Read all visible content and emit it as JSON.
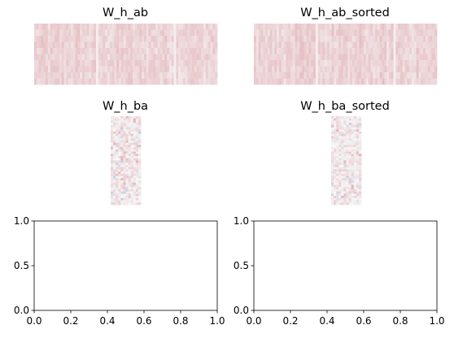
{
  "chart_data": [
    {
      "type": "heatmap",
      "title": "W_h_ab",
      "rows": 10,
      "cols": 80,
      "colormap": "RdBu_r",
      "value_range": [
        -1,
        1
      ],
      "base_value": 0.16,
      "axis": "off"
    },
    {
      "type": "heatmap",
      "title": "W_h_ab_sorted",
      "rows": 10,
      "cols": 80,
      "colormap": "RdBu_r",
      "value_range": [
        -1,
        1
      ],
      "base_value": 0.16,
      "axis": "off"
    },
    {
      "type": "heatmap",
      "title": "W_h_ba",
      "rows": 40,
      "cols": 12,
      "colormap": "RdBu_r",
      "value_range": [
        -1,
        1
      ],
      "base_value": 0.05,
      "axis": "off"
    },
    {
      "type": "heatmap",
      "title": "W_h_ba_sorted",
      "rows": 40,
      "cols": 12,
      "colormap": "RdBu_r",
      "value_range": [
        -1,
        1
      ],
      "base_value": 0.05,
      "axis": "off"
    },
    {
      "type": "line",
      "title": "",
      "series": [],
      "xlim": [
        0.0,
        1.0
      ],
      "ylim": [
        0.0,
        1.0
      ],
      "xticks": [
        "0.0",
        "0.2",
        "0.4",
        "0.6",
        "0.8",
        "1.0"
      ],
      "yticks": [
        "0.0",
        "0.5",
        "1.0"
      ]
    },
    {
      "type": "line",
      "title": "",
      "series": [],
      "xlim": [
        0.0,
        1.0
      ],
      "ylim": [
        0.0,
        1.0
      ],
      "xticks": [
        "0.0",
        "0.2",
        "0.4",
        "0.6",
        "0.8",
        "1.0"
      ],
      "yticks": [
        "0.0",
        "0.5",
        "1.0"
      ]
    }
  ]
}
